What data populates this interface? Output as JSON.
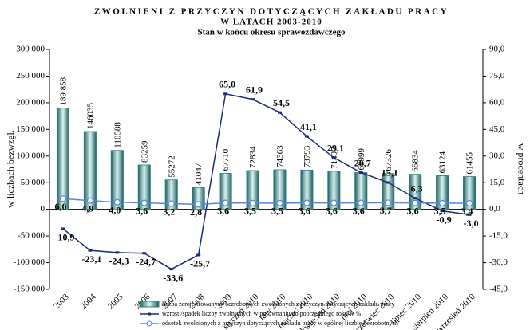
{
  "chart_data": {
    "type": "bar",
    "title": [
      "ZWOLNIENI Z PRZYCZYN DOTYCZĄCYCH ZAKŁADU PRACY",
      "W LATACH 2003-2010"
    ],
    "subtitle": "Stan w końcu okresu sprawozdawczego",
    "y_label": "w liczbach bezwzgl.",
    "y2_label": "w procentach",
    "categories": [
      "2003",
      "2004",
      "2005",
      "2006",
      "2007",
      "2008",
      "2009",
      "styczeń 2010",
      "luty 2010",
      "marzec 2010",
      "kwiecień 2010",
      "maj 2010",
      "czerwiec 2010",
      "lipiec 2010",
      "sierpień 2010",
      "wrzesień 2010"
    ],
    "series": [
      {
        "name": "liczba zarejestrowanych bezrobotnych zwolnionych z przyczyn dotyczących zakładu pracy",
        "type": "bar",
        "axis": "y",
        "color": "#2d7f7f",
        "values": [
          189858,
          146035,
          110588,
          83259,
          55272,
          41047,
          67710,
          72834,
          74363,
          73793,
          71497,
          68999,
          67326,
          65834,
          63124,
          61455
        ],
        "value_labels": [
          "189 858",
          "146035",
          "110588",
          "83259",
          "55272",
          "41047",
          "67710",
          "72834",
          "74363",
          "73793",
          "71497",
          "68999",
          "67326",
          "65834",
          "63124",
          "61455"
        ]
      },
      {
        "name": "wzrost /spadek liczby zwolnionych w porównaniu do poprzedniego roku w %",
        "type": "line",
        "axis": "y2",
        "color": "#1c2b78",
        "values": [
          -10.9,
          -23.1,
          -24.3,
          -24.7,
          -33.6,
          -25.7,
          65.0,
          61.9,
          54.5,
          41.1,
          29.1,
          20.7,
          15.1,
          6.3,
          -0.9,
          -3.0
        ],
        "value_labels": [
          "-10,9",
          "-23,1",
          "-24,3",
          "-24,7",
          "-33,6",
          "-25,7",
          "65,0",
          "61,9",
          "54,5",
          "41,1",
          "29,1",
          "20,7",
          "15,1",
          "6,3",
          "-0,9",
          "-3,0"
        ]
      },
      {
        "name": "odsetek zwolnionych z przyczyn dotyczących zakładu pracy w ogólnej liczbie bezrobotnych",
        "type": "line",
        "axis": "y2",
        "color": "#4f86e0",
        "values": [
          6.0,
          4.9,
          4.0,
          3.6,
          3.2,
          2.8,
          3.6,
          3.5,
          3.5,
          3.6,
          3.6,
          3.6,
          3.7,
          3.6,
          3.5,
          3.4
        ],
        "value_labels": [
          "6,0",
          "4,9",
          "4,0",
          "3,6",
          "3,2",
          "2,8",
          "3,6",
          "3,5",
          "3,5",
          "3,6",
          "3,6",
          "3,6",
          "3,7",
          "3,6",
          "3,5",
          "3,4"
        ]
      }
    ],
    "ylim": [
      -150000,
      300000
    ],
    "yticks": [
      {
        "value": -150000,
        "label": "-150 000"
      },
      {
        "value": -100000,
        "label": "-100 000"
      },
      {
        "value": -50000,
        "label": "-50 000"
      },
      0,
      {
        "value": 50000,
        "label": "50 000"
      },
      {
        "value": 100000,
        "label": "100 000"
      },
      {
        "value": 150000,
        "label": "150 000"
      },
      {
        "value": 200000,
        "label": "200 000"
      },
      {
        "value": 250000,
        "label": "250 000"
      },
      {
        "value": 300000,
        "label": "300 000"
      }
    ],
    "y2lim": [
      -45,
      90
    ],
    "y2ticks": [
      {
        "value": -45,
        "label": "-45,0"
      },
      {
        "value": -30,
        "label": "-30,0"
      },
      {
        "value": -15,
        "label": "-15,0"
      },
      {
        "value": 0,
        "label": "0,0"
      },
      {
        "value": 15,
        "label": "15,0"
      },
      {
        "value": 30,
        "label": "30,0"
      },
      {
        "value": 45,
        "label": "45,0"
      },
      {
        "value": 60,
        "label": "60,0"
      },
      {
        "value": 75,
        "label": "75,0"
      },
      {
        "value": 90,
        "label": "90,0"
      }
    ],
    "legend": "bottom"
  }
}
